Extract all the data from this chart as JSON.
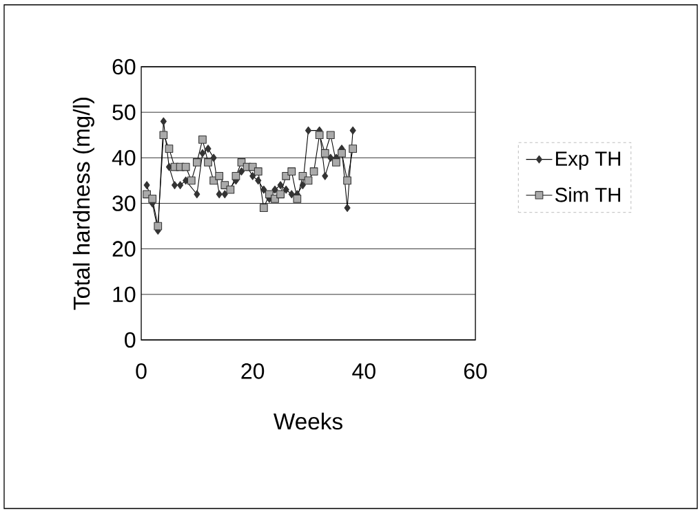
{
  "chart_data": {
    "type": "line",
    "xlabel": "Weeks",
    "ylabel": "Total hardness (mg/l)",
    "xlim": [
      0,
      60
    ],
    "ylim": [
      0,
      60
    ],
    "xticks": [
      0,
      20,
      40,
      60
    ],
    "yticks": [
      0,
      10,
      20,
      30,
      40,
      50,
      60
    ],
    "grid": "y",
    "legend": "right",
    "series": [
      {
        "name": "Exp TH",
        "color": "#333333",
        "marker": "diamond",
        "x": [
          1,
          2,
          3,
          4,
          5,
          6,
          7,
          8,
          9,
          10,
          11,
          12,
          13,
          14,
          15,
          16,
          17,
          18,
          19,
          20,
          21,
          22,
          23,
          24,
          25,
          26,
          27,
          28,
          29,
          30,
          31,
          32,
          33,
          34,
          35,
          36,
          37,
          38
        ],
        "values": [
          34,
          30,
          24,
          48,
          38,
          34,
          34,
          35,
          null,
          32,
          41,
          42,
          40,
          32,
          32,
          null,
          35,
          37,
          38,
          36,
          35,
          33,
          31,
          33,
          34,
          33,
          32,
          32,
          34,
          46,
          null,
          46,
          36,
          40,
          40,
          42,
          29,
          46
        ]
      },
      {
        "name": "Sim TH",
        "color": "#aaaaaa",
        "marker": "square",
        "x": [
          1,
          2,
          3,
          4,
          5,
          6,
          7,
          8,
          9,
          10,
          11,
          12,
          13,
          14,
          15,
          16,
          17,
          18,
          19,
          20,
          21,
          22,
          23,
          24,
          25,
          26,
          27,
          28,
          29,
          30,
          31,
          32,
          33,
          34,
          35,
          36,
          37,
          38
        ],
        "values": [
          32,
          31,
          25,
          45,
          42,
          38,
          38,
          38,
          35,
          39,
          44,
          39,
          35,
          36,
          34,
          33,
          36,
          39,
          38,
          38,
          37,
          29,
          32,
          31,
          32,
          36,
          37,
          31,
          36,
          35,
          37,
          45,
          41,
          45,
          39,
          41,
          35,
          42
        ]
      }
    ]
  }
}
